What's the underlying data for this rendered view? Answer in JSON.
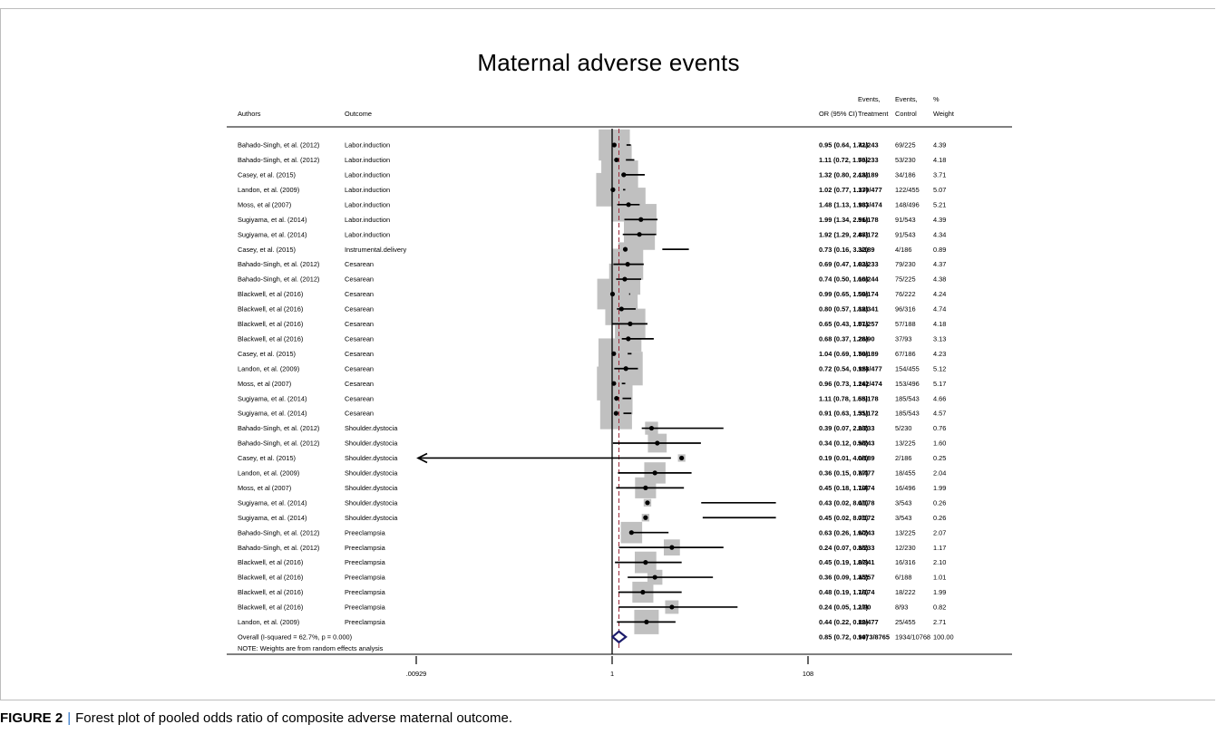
{
  "chart_data": {
    "type": "forest",
    "title": "Maternal adverse events",
    "x_scale": "log",
    "x_range": [
      0.00929,
      108
    ],
    "x_ticks": [
      ".00929",
      "1",
      "108"
    ],
    "null_value": 1,
    "pooled_estimate_line": 0.85,
    "columns": {
      "author": "Authors",
      "outcome": "Outcome",
      "or_ci": "OR (95% CI)",
      "events_treatment": [
        "Events,",
        "Treatment"
      ],
      "events_control": [
        "Events,",
        "Control"
      ],
      "weight": [
        "%",
        "Weight"
      ]
    },
    "studies": [
      {
        "author": "Bahado-Singh, et al. (2012)",
        "outcome": "Labor.induction",
        "or": 0.95,
        "lo": 0.64,
        "hi": 1.41,
        "ci_text": "0.95 (0.64, 1.41)",
        "treatment": "72/243",
        "control": "69/225",
        "weight": 4.39,
        "weight_text": "4.39"
      },
      {
        "author": "Bahado-Singh, et al. (2012)",
        "outcome": "Labor.induction",
        "or": 1.11,
        "lo": 0.72,
        "hi": 1.7,
        "ci_text": "1.11 (0.72, 1.70)",
        "treatment": "58/233",
        "control": "53/230",
        "weight": 4.18,
        "weight_text": "4.18"
      },
      {
        "author": "Casey, et al. (2015)",
        "outcome": "Labor.induction",
        "or": 1.32,
        "lo": 0.8,
        "hi": 2.18,
        "ci_text": "1.32 (0.80, 2.18)",
        "treatment": "43/189",
        "control": "34/186",
        "weight": 3.71,
        "weight_text": "3.71"
      },
      {
        "author": "Landon, et al. (2009)",
        "outcome": "Labor.induction",
        "or": 1.02,
        "lo": 0.77,
        "hi": 1.37,
        "ci_text": "1.02 (0.77, 1.37)",
        "treatment": "130/477",
        "control": "122/455",
        "weight": 5.07,
        "weight_text": "5.07"
      },
      {
        "author": "Moss, et al (2007)",
        "outcome": "Labor.induction",
        "or": 1.48,
        "lo": 1.13,
        "hi": 1.93,
        "ci_text": "1.48 (1.13, 1.93)",
        "treatment": "183/474",
        "control": "148/496",
        "weight": 5.21,
        "weight_text": "5.21"
      },
      {
        "author": "Sugiyama, et al. (2014)",
        "outcome": "Labor.induction",
        "or": 1.99,
        "lo": 1.34,
        "hi": 2.96,
        "ci_text": "1.99 (1.34, 2.96)",
        "treatment": "51/178",
        "control": "91/543",
        "weight": 4.39,
        "weight_text": "4.39"
      },
      {
        "author": "Sugiyama, et al. (2014)",
        "outcome": "Labor.induction",
        "or": 1.92,
        "lo": 1.29,
        "hi": 2.87,
        "ci_text": "1.92 (1.29, 2.87)",
        "treatment": "48/172",
        "control": "91/543",
        "weight": 4.34,
        "weight_text": "4.34"
      },
      {
        "author": "Casey, et al. (2015)",
        "outcome": "Instrumental.delivery",
        "or": 0.73,
        "lo": 0.16,
        "hi": 3.32,
        "ci_text": "0.73 (0.16, 3.32)",
        "treatment": "3/189",
        "control": "4/186",
        "weight": 0.89,
        "weight_text": "0.89"
      },
      {
        "author": "Bahado-Singh, et al. (2012)",
        "outcome": "Cesarean",
        "or": 0.69,
        "lo": 0.47,
        "hi": 1.03,
        "ci_text": "0.69 (0.47, 1.03)",
        "treatment": "62/233",
        "control": "79/230",
        "weight": 4.37,
        "weight_text": "4.37"
      },
      {
        "author": "Bahado-Singh, et al. (2012)",
        "outcome": "Cesarean",
        "or": 0.74,
        "lo": 0.5,
        "hi": 1.1,
        "ci_text": "0.74 (0.50, 1.10)",
        "treatment": "66/244",
        "control": "75/225",
        "weight": 4.38,
        "weight_text": "4.38"
      },
      {
        "author": "Blackwell, et al (2016)",
        "outcome": "Cesarean",
        "or": 0.99,
        "lo": 0.65,
        "hi": 1.5,
        "ci_text": "0.99 (0.65, 1.50)",
        "treatment": "59/174",
        "control": "76/222",
        "weight": 4.24,
        "weight_text": "4.24"
      },
      {
        "author": "Blackwell, et al (2016)",
        "outcome": "Cesarean",
        "or": 0.8,
        "lo": 0.57,
        "hi": 1.12,
        "ci_text": "0.80 (0.57, 1.12)",
        "treatment": "88/341",
        "control": "96/316",
        "weight": 4.74,
        "weight_text": "4.74"
      },
      {
        "author": "Blackwell, et al (2016)",
        "outcome": "Cesarean",
        "or": 0.65,
        "lo": 0.43,
        "hi": 1.01,
        "ci_text": "0.65 (0.43, 1.01)",
        "treatment": "57/257",
        "control": "57/188",
        "weight": 4.18,
        "weight_text": "4.18"
      },
      {
        "author": "Blackwell, et al (2016)",
        "outcome": "Cesarean",
        "or": 0.68,
        "lo": 0.37,
        "hi": 1.26,
        "ci_text": "0.68 (0.37, 1.26)",
        "treatment": "28/90",
        "control": "37/93",
        "weight": 3.13,
        "weight_text": "3.13"
      },
      {
        "author": "Casey, et al. (2015)",
        "outcome": "Cesarean",
        "or": 1.04,
        "lo": 0.69,
        "hi": 1.59,
        "ci_text": "1.04 (0.69, 1.59)",
        "treatment": "70/189",
        "control": "67/186",
        "weight": 4.23,
        "weight_text": "4.23"
      },
      {
        "author": "Landon, et al. (2009)",
        "outcome": "Cesarean",
        "or": 0.72,
        "lo": 0.54,
        "hi": 0.95,
        "ci_text": "0.72 (0.54, 0.95)",
        "treatment": "128/477",
        "control": "154/455",
        "weight": 5.12,
        "weight_text": "5.12"
      },
      {
        "author": "Moss, et al (2007)",
        "outcome": "Cesarean",
        "or": 0.96,
        "lo": 0.73,
        "hi": 1.26,
        "ci_text": "0.96 (0.73, 1.26)",
        "treatment": "142/474",
        "control": "153/496",
        "weight": 5.17,
        "weight_text": "5.17"
      },
      {
        "author": "Sugiyama, et al. (2014)",
        "outcome": "Cesarean",
        "or": 1.11,
        "lo": 0.78,
        "hi": 1.58,
        "ci_text": "1.11 (0.78, 1.58)",
        "treatment": "65/178",
        "control": "185/543",
        "weight": 4.66,
        "weight_text": "4.66"
      },
      {
        "author": "Sugiyama, et al. (2014)",
        "outcome": "Cesarean",
        "or": 0.91,
        "lo": 0.63,
        "hi": 1.31,
        "ci_text": "0.91 (0.63, 1.31)",
        "treatment": "55/172",
        "control": "185/543",
        "weight": 4.57,
        "weight_text": "4.57"
      },
      {
        "author": "Bahado-Singh, et al. (2012)",
        "outcome": "Shoulder.dystocia",
        "or": 0.39,
        "lo": 0.07,
        "hi": 2.03,
        "ci_text": "0.39 (0.07, 2.03)",
        "treatment": "2/233",
        "control": "5/230",
        "weight": 0.76,
        "weight_text": "0.76"
      },
      {
        "author": "Bahado-Singh, et al. (2012)",
        "outcome": "Shoulder.dystocia",
        "or": 0.34,
        "lo": 0.12,
        "hi": 0.98,
        "ci_text": "0.34 (0.12, 0.98)",
        "treatment": "5/243",
        "control": "13/225",
        "weight": 1.6,
        "weight_text": "1.60"
      },
      {
        "author": "Casey, et al. (2015)",
        "outcome": "Shoulder.dystocia",
        "or": 0.19,
        "lo": 0.01,
        "hi": 4.08,
        "ci_text": "0.19 (0.01, 4.08)",
        "treatment": "0/189",
        "control": "2/186",
        "weight": 0.25,
        "weight_text": "0.25",
        "lo_truncated": true
      },
      {
        "author": "Landon, et al. (2009)",
        "outcome": "Shoulder.dystocia",
        "or": 0.36,
        "lo": 0.15,
        "hi": 0.87,
        "ci_text": "0.36 (0.15, 0.87)",
        "treatment": "7/477",
        "control": "18/455",
        "weight": 2.04,
        "weight_text": "2.04"
      },
      {
        "author": "Moss, et al (2007)",
        "outcome": "Shoulder.dystocia",
        "or": 0.45,
        "lo": 0.18,
        "hi": 1.1,
        "ci_text": "0.45 (0.18, 1.10)",
        "treatment": "7/474",
        "control": "16/496",
        "weight": 1.99,
        "weight_text": "1.99"
      },
      {
        "author": "Sugiyama, et al. (2014)",
        "outcome": "Shoulder.dystocia",
        "or": 0.43,
        "lo": 0.02,
        "hi": 8.41,
        "ci_text": "0.43 (0.02, 8.41)",
        "treatment": "0/178",
        "control": "3/543",
        "weight": 0.26,
        "weight_text": "0.26"
      },
      {
        "author": "Sugiyama, et al. (2014)",
        "outcome": "Shoulder.dystocia",
        "or": 0.45,
        "lo": 0.02,
        "hi": 8.71,
        "ci_text": "0.45 (0.02, 8.71)",
        "treatment": "0/172",
        "control": "3/543",
        "weight": 0.26,
        "weight_text": "0.26"
      },
      {
        "author": "Bahado-Singh, et al. (2012)",
        "outcome": "Preeclampsia",
        "or": 0.63,
        "lo": 0.26,
        "hi": 1.6,
        "ci_text": "0.63 (0.26, 1.60)",
        "treatment": "9/243",
        "control": "13/225",
        "weight": 2.07,
        "weight_text": "2.07"
      },
      {
        "author": "Bahado-Singh, et al. (2012)",
        "outcome": "Preeclampsia",
        "or": 0.24,
        "lo": 0.07,
        "hi": 0.85,
        "ci_text": "0.24 (0.07, 0.85)",
        "treatment": "3/233",
        "control": "12/230",
        "weight": 1.17,
        "weight_text": "1.17"
      },
      {
        "author": "Blackwell, et al (2016)",
        "outcome": "Preeclampsia",
        "or": 0.45,
        "lo": 0.19,
        "hi": 1.07,
        "ci_text": "0.45 (0.19, 1.07)",
        "treatment": "8/341",
        "control": "16/316",
        "weight": 2.1,
        "weight_text": "2.10"
      },
      {
        "author": "Blackwell, et al (2016)",
        "outcome": "Preeclampsia",
        "or": 0.36,
        "lo": 0.09,
        "hi": 1.45,
        "ci_text": "0.36 (0.09, 1.45)",
        "treatment": "3/257",
        "control": "6/188",
        "weight": 1.01,
        "weight_text": "1.01"
      },
      {
        "author": "Blackwell, et al (2016)",
        "outcome": "Preeclampsia",
        "or": 0.48,
        "lo": 0.19,
        "hi": 1.16,
        "ci_text": "0.48 (0.19, 1.16)",
        "treatment": "7/174",
        "control": "18/222",
        "weight": 1.99,
        "weight_text": "1.99"
      },
      {
        "author": "Blackwell, et al (2016)",
        "outcome": "Preeclampsia",
        "or": 0.24,
        "lo": 0.05,
        "hi": 1.17,
        "ci_text": "0.24 (0.05, 1.17)",
        "treatment": "2/90",
        "control": "8/93",
        "weight": 0.82,
        "weight_text": "0.82"
      },
      {
        "author": "Landon, et al. (2009)",
        "outcome": "Preeclampsia",
        "or": 0.44,
        "lo": 0.22,
        "hi": 0.89,
        "ci_text": "0.44 (0.22, 0.89)",
        "treatment": "12/477",
        "control": "25/455",
        "weight": 2.71,
        "weight_text": "2.71"
      }
    ],
    "overall": {
      "label": "Overall  (I-squared = 62.7%, p = 0.000)",
      "or": 0.85,
      "lo": 0.72,
      "hi": 0.99,
      "ci_text": "0.85 (0.72, 0.99)",
      "treatment": "1473/8765",
      "control": "1934/10768",
      "weight_text": "100.00"
    },
    "note": "NOTE: Weights are from random effects analysis",
    "colors": {
      "weight_box": "#c0c0c0",
      "pooled_line": "#9b2a3a",
      "overall_diamond": "#1c1c6b"
    }
  },
  "caption": {
    "label": "FIGURE 2",
    "separator": "|",
    "text": "Forest plot of pooled odds ratio of composite adverse maternal outcome."
  }
}
